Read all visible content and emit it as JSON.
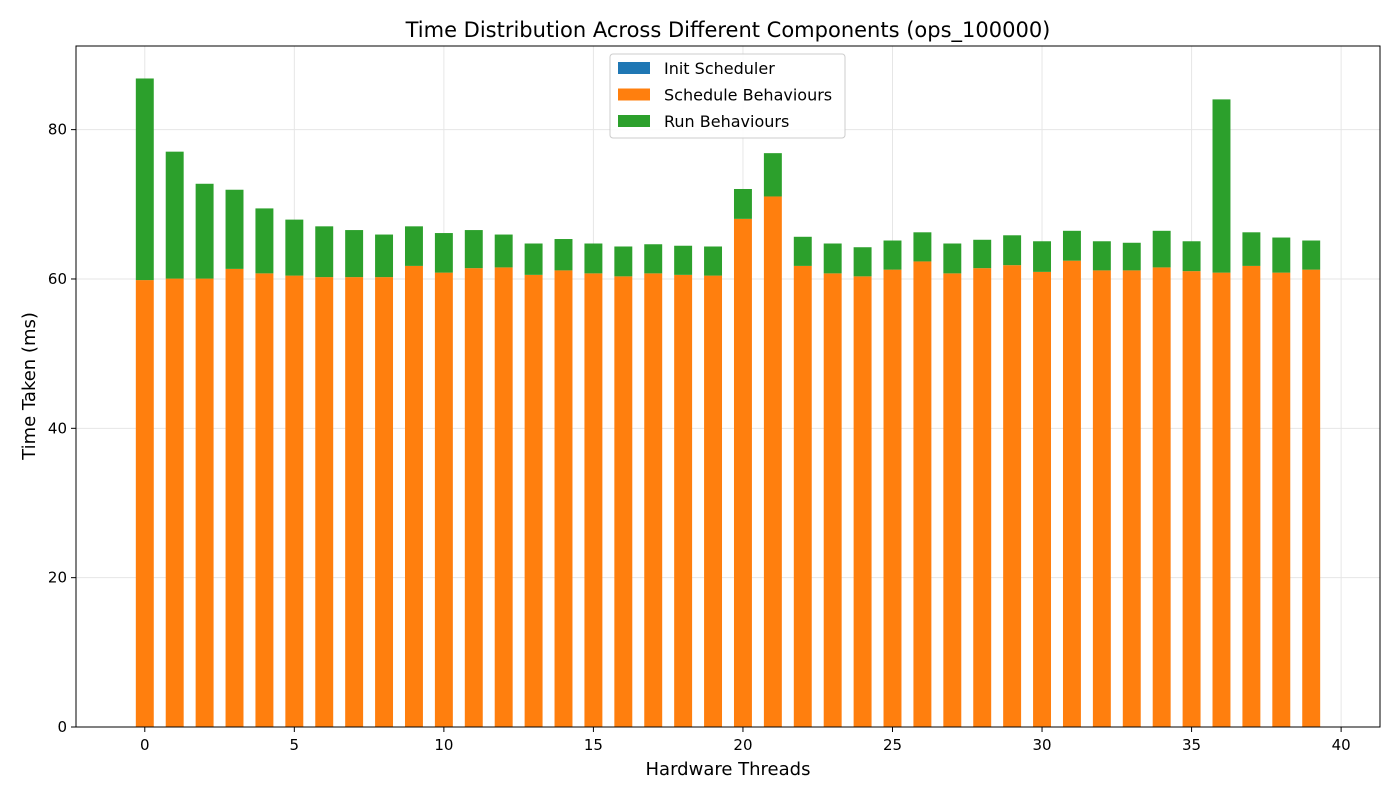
{
  "chart_data": {
    "type": "bar",
    "stacked": true,
    "title": "Time Distribution Across Different Components (ops_100000)",
    "xlabel": "Hardware Threads",
    "ylabel": "Time Taken (ms)",
    "xlim": [
      -2.3,
      41.3
    ],
    "ylim": [
      0,
      91.2
    ],
    "x_ticks": [
      0,
      5,
      10,
      15,
      20,
      25,
      30,
      35,
      40
    ],
    "y_ticks": [
      0,
      20,
      40,
      60,
      80
    ],
    "grid": true,
    "legend_position": "top-center",
    "bar_width": 0.6,
    "x": [
      0,
      1,
      2,
      3,
      4,
      5,
      6,
      7,
      8,
      9,
      10,
      11,
      12,
      13,
      14,
      15,
      16,
      17,
      18,
      19,
      20,
      21,
      22,
      23,
      24,
      25,
      26,
      27,
      28,
      29,
      30,
      31,
      32,
      33,
      34,
      35,
      36,
      37,
      38,
      39
    ],
    "series": [
      {
        "name": "Init Scheduler",
        "color": "#1f77b4",
        "values": [
          0.05,
          0.05,
          0.05,
          0.05,
          0.05,
          0.05,
          0.05,
          0.05,
          0.05,
          0.05,
          0.05,
          0.05,
          0.05,
          0.05,
          0.05,
          0.05,
          0.05,
          0.05,
          0.05,
          0.05,
          0.05,
          0.05,
          0.05,
          0.05,
          0.05,
          0.05,
          0.05,
          0.05,
          0.05,
          0.05,
          0.05,
          0.05,
          0.05,
          0.05,
          0.05,
          0.05,
          0.05,
          0.05,
          0.05,
          0.05
        ]
      },
      {
        "name": "Schedule Behaviours",
        "color": "#ff7f0e",
        "values": [
          59.8,
          60.0,
          60.0,
          61.3,
          60.7,
          60.4,
          60.2,
          60.2,
          60.2,
          61.7,
          60.8,
          61.4,
          61.5,
          60.5,
          61.1,
          60.7,
          60.3,
          60.7,
          60.5,
          60.4,
          68.0,
          71.0,
          61.7,
          60.7,
          60.3,
          61.2,
          62.3,
          60.7,
          61.4,
          61.8,
          60.9,
          62.4,
          61.1,
          61.1,
          61.5,
          61.0,
          60.8,
          61.7,
          60.8,
          61.2
        ]
      },
      {
        "name": "Run Behaviours",
        "color": "#2ca02c",
        "values": [
          27.0,
          17.0,
          12.7,
          10.6,
          8.7,
          7.5,
          6.8,
          6.3,
          5.7,
          5.3,
          5.3,
          5.1,
          4.4,
          4.2,
          4.2,
          4.0,
          4.0,
          3.9,
          3.9,
          3.9,
          4.0,
          5.8,
          3.9,
          4.0,
          3.9,
          3.9,
          3.9,
          4.0,
          3.8,
          4.0,
          4.1,
          4.0,
          3.9,
          3.7,
          4.9,
          4.0,
          23.2,
          4.5,
          4.7,
          3.9
        ]
      }
    ]
  }
}
